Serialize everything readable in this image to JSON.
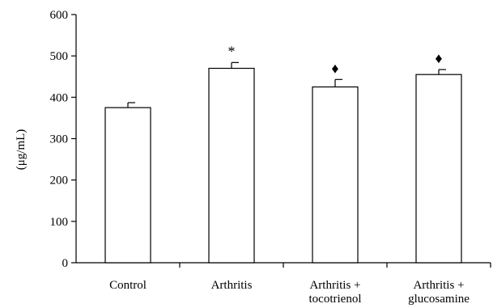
{
  "chart_data": {
    "type": "bar",
    "title": "",
    "xlabel": "",
    "ylabel": "(μg/mL)",
    "ylim": [
      0,
      600
    ],
    "yticks": [
      0,
      100,
      200,
      300,
      400,
      500,
      600
    ],
    "grid": false,
    "legend": "none",
    "categories": [
      [
        "Control"
      ],
      [
        "Arthritis"
      ],
      [
        "Arthritis +",
        "tocotrienol"
      ],
      [
        "Arthritis +",
        "glucosamine"
      ]
    ],
    "values": [
      375,
      470,
      425,
      455
    ],
    "errors": [
      12,
      14,
      18,
      12
    ],
    "annotations": [
      "",
      "*",
      "♦",
      "♦"
    ],
    "colors": {
      "bar_fill": "#ffffff",
      "stroke": "#000000"
    }
  }
}
